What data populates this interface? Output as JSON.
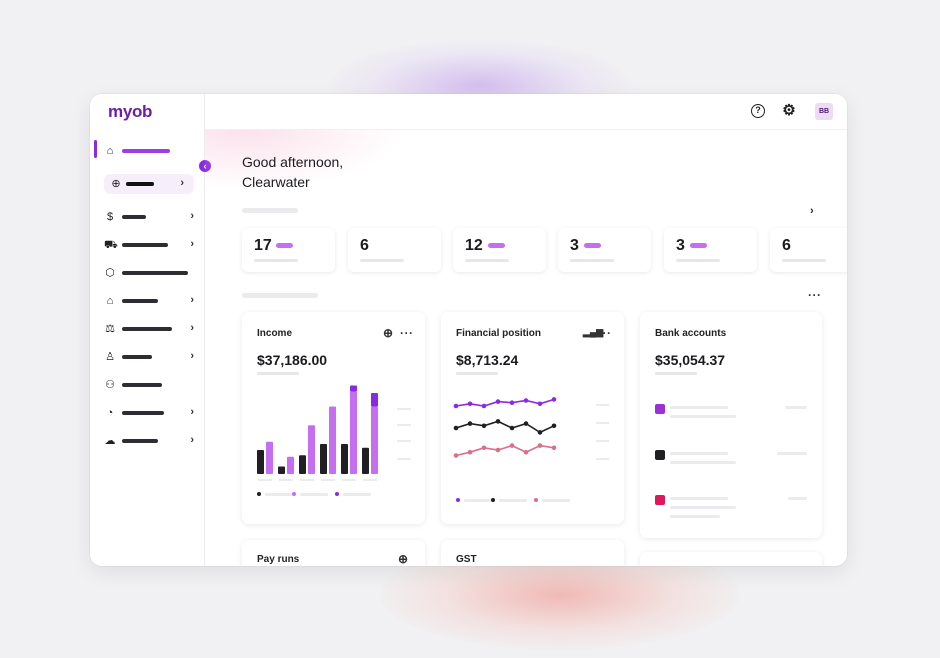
{
  "app": {
    "logo": "myob",
    "avatar_initials": "BB",
    "help_icon": "help-circle-icon",
    "settings_icon": "gear-icon"
  },
  "colors": {
    "accent": "#8a2be2",
    "accent_light": "#c56ff0",
    "pink": "#d9708a",
    "dark": "#1f1f24",
    "bank_purple": "#9b30d9",
    "bank_black": "#1f1f24",
    "bank_red": "#e0185a"
  },
  "sidebar": {
    "items": [
      {
        "icon": "home-icon",
        "has_chevron": false,
        "active": true
      },
      {
        "icon": "plus-circle-icon",
        "has_chevron": true,
        "active": false
      },
      {
        "icon": "dollar-icon",
        "has_chevron": true,
        "active": false
      },
      {
        "icon": "cart-icon",
        "has_chevron": true,
        "active": false
      },
      {
        "icon": "box-icon",
        "has_chevron": false,
        "active": false
      },
      {
        "icon": "bank-icon",
        "has_chevron": true,
        "active": false
      },
      {
        "icon": "scales-icon",
        "has_chevron": true,
        "active": false
      },
      {
        "icon": "person-icon",
        "has_chevron": true,
        "active": false
      },
      {
        "icon": "people-icon",
        "has_chevron": false,
        "active": false
      },
      {
        "icon": "chart-pie-icon",
        "has_chevron": true,
        "active": false
      },
      {
        "icon": "cloud-upload-icon",
        "has_chevron": true,
        "active": false
      }
    ]
  },
  "greeting": {
    "line1": "Good afternoon,",
    "line2": "Clearwater"
  },
  "stats": [
    "17",
    "6",
    "12",
    "3",
    "3",
    "6"
  ],
  "cards": {
    "income": {
      "title": "Income",
      "amount": "$37,186.00",
      "chart_data": {
        "type": "bar",
        "categories": [
          "1",
          "2",
          "3",
          "4",
          "5",
          "6"
        ],
        "series": [
          {
            "values": [
              32,
              10,
              25,
              40,
              40,
              35
            ]
          },
          {
            "values": [
              43,
              23,
              65,
              90,
              110,
              90
            ]
          },
          {
            "values": [
              0,
              0,
              0,
              0,
              8,
              18
            ]
          }
        ],
        "ylim": [
          0,
          120
        ]
      }
    },
    "financial_position": {
      "title": "Financial position",
      "amount": "$8,713.24",
      "chart_data": {
        "type": "line",
        "x": [
          1,
          2,
          3,
          4,
          5,
          6,
          7,
          8
        ],
        "series": [
          {
            "values": [
              60,
              62,
              60,
              64,
              63,
              65,
              62,
              66
            ]
          },
          {
            "values": [
              40,
              44,
              42,
              46,
              40,
              44,
              36,
              42
            ]
          },
          {
            "values": [
              15,
              18,
              22,
              20,
              24,
              18,
              24,
              22
            ]
          }
        ],
        "ylim": [
          0,
          80
        ]
      }
    },
    "bank_accounts": {
      "title": "Bank accounts",
      "amount": "$35,054.37"
    },
    "pay_runs": {
      "title": "Pay runs"
    },
    "gst": {
      "title": "GST"
    }
  }
}
